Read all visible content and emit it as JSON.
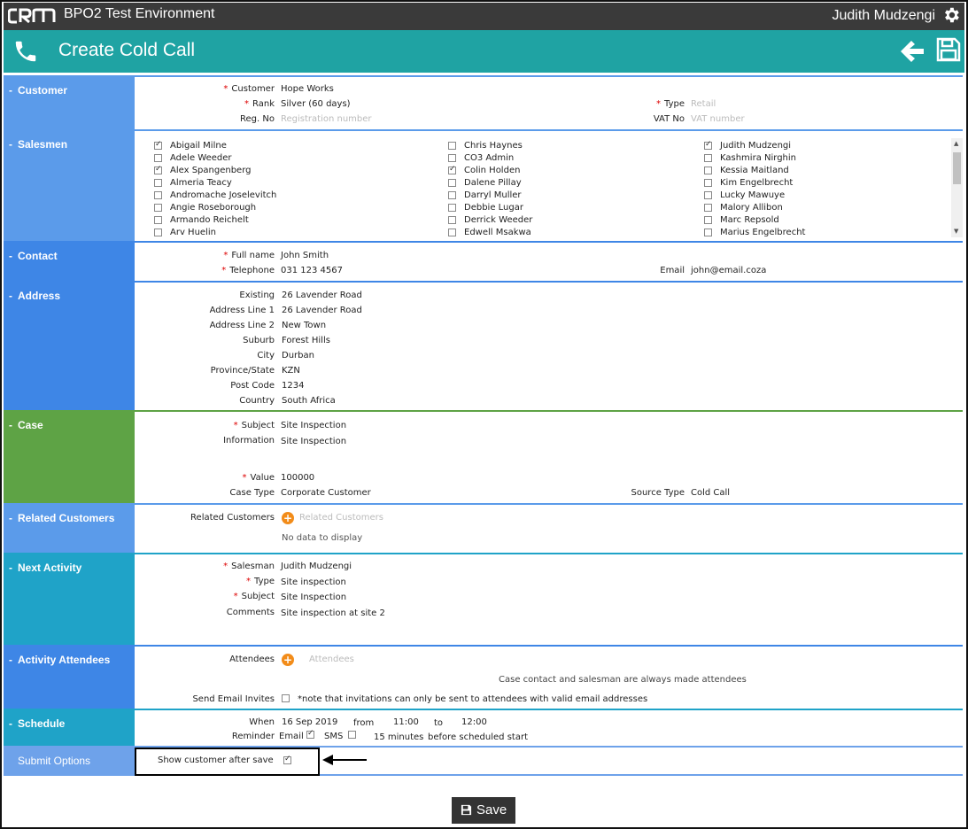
{
  "topbar": {
    "env": "BPO2 Test Environment",
    "user": "Judith Mudzengi"
  },
  "page_title": "Create Cold Call",
  "sections": {
    "customer": "Customer",
    "salesmen": "Salesmen",
    "contact": "Contact",
    "address": "Address",
    "case": "Case",
    "related": "Related Customers",
    "next_activity": "Next Activity",
    "attendees": "Activity Attendees",
    "schedule": "Schedule",
    "submit": "Submit Options"
  },
  "customer": {
    "customer_label": "Customer",
    "customer_value": "Hope Works",
    "rank_label": "Rank",
    "rank_value": "Silver (60 days)",
    "regno_label": "Reg. No",
    "regno_placeholder": "Registration number",
    "type_label": "Type",
    "type_placeholder": "Retail",
    "vat_label": "VAT No",
    "vat_placeholder": "VAT number"
  },
  "salesmen": {
    "col1": [
      {
        "name": "Abigail Milne",
        "checked": true
      },
      {
        "name": "Adele Weeder",
        "checked": false
      },
      {
        "name": "Alex Spangenberg",
        "checked": true
      },
      {
        "name": "Almeria Teacy",
        "checked": false
      },
      {
        "name": "Andromache Joselevitch",
        "checked": false
      },
      {
        "name": "Angie Roseborough",
        "checked": false
      },
      {
        "name": "Armando Reichelt",
        "checked": false
      },
      {
        "name": "Arv Huelin",
        "checked": false
      }
    ],
    "col2": [
      {
        "name": "Chris Haynes",
        "checked": false
      },
      {
        "name": "CO3 Admin",
        "checked": false
      },
      {
        "name": "Colin Holden",
        "checked": true
      },
      {
        "name": "Dalene Pillay",
        "checked": false
      },
      {
        "name": "Darryl Muller",
        "checked": false
      },
      {
        "name": "Debbie Lugar",
        "checked": false
      },
      {
        "name": "Derrick Weeder",
        "checked": false
      },
      {
        "name": "Edwell Msakwa",
        "checked": false
      }
    ],
    "col3": [
      {
        "name": "Judith Mudzengi",
        "checked": true
      },
      {
        "name": "Kashmira Nirghin",
        "checked": false
      },
      {
        "name": "Kessia Maitland",
        "checked": false
      },
      {
        "name": "Kim Engelbrecht",
        "checked": false
      },
      {
        "name": "Lucky Mawuye",
        "checked": false
      },
      {
        "name": "Malory Allibon",
        "checked": false
      },
      {
        "name": "Marc Repsold",
        "checked": false
      },
      {
        "name": "Marius Engelbrecht",
        "checked": false
      }
    ]
  },
  "contact": {
    "fullname_label": "Full name",
    "fullname_value": "John Smith",
    "tel_label": "Telephone",
    "tel_value": "031 123 4567",
    "email_label": "Email",
    "email_value": "john@email.coza"
  },
  "address": {
    "rows": [
      {
        "label": "Existing",
        "value": "26 Lavender Road"
      },
      {
        "label": "Address Line 1",
        "value": "26 Lavender Road"
      },
      {
        "label": "Address Line 2",
        "value": "New Town"
      },
      {
        "label": "Suburb",
        "value": "Forest Hills"
      },
      {
        "label": "City",
        "value": "Durban"
      },
      {
        "label": "Province/State",
        "value": "KZN"
      },
      {
        "label": "Post Code",
        "value": "1234"
      },
      {
        "label": "Country",
        "value": "South Africa"
      }
    ]
  },
  "case": {
    "subject_label": "Subject",
    "subject_value": "Site Inspection",
    "info_label": "Information",
    "info_value": "Site Inspection",
    "value_label": "Value",
    "value_value": "100000",
    "casetype_label": "Case Type",
    "casetype_value": "Corporate Customer",
    "source_label": "Source Type",
    "source_value": "Cold Call"
  },
  "related": {
    "label": "Related Customers",
    "placeholder": "Related Customers",
    "empty": "No data to display"
  },
  "next_activity": {
    "salesman_label": "Salesman",
    "salesman_value": "Judith Mudzengi",
    "type_label": "Type",
    "type_value": "Site inspection",
    "subject_label": "Subject",
    "subject_value": "Site Inspection",
    "comments_label": "Comments",
    "comments_value": "Site inspection at site 2"
  },
  "attendees": {
    "label": "Attendees",
    "placeholder": "Attendees",
    "note": "Case contact and salesman are always made attendees",
    "invites_label": "Send Email Invites",
    "invites_note": "*note that invitations can only be sent to attendees with valid email addresses"
  },
  "schedule": {
    "when_label": "When",
    "date": "16 Sep 2019",
    "from_label": "from",
    "from_time": "11:00",
    "to_label": "to",
    "to_time": "12:00",
    "reminder_label": "Reminder",
    "email_label": "Email",
    "sms_label": "SMS",
    "minutes": "15 minutes",
    "before": "before scheduled start"
  },
  "submit": {
    "show_label": "Show customer after save"
  },
  "save_button": "Save",
  "colors": {
    "topbar": "#3a3a3a",
    "titlebar": "#1fa3a3",
    "customer": "#5b9bea",
    "salesmen": "#5b9bea",
    "contact": "#3e86e6",
    "address": "#3e86e6",
    "case": "#5ea345",
    "related": "#5b9bea",
    "next_activity": "#1fa3c8",
    "attendees": "#3e86e6",
    "schedule": "#1fa3c8",
    "submit": "#6ea2ea",
    "required": "#dd0000",
    "add": "#f28c1a"
  }
}
